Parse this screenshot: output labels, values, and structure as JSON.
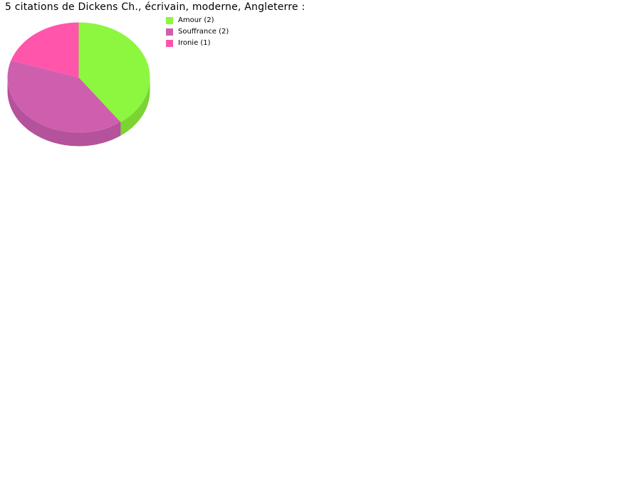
{
  "title": "5 citations de Dickens Ch., écrivain, moderne, Angleterre :",
  "chart_data": {
    "type": "pie",
    "style": "3d",
    "title": "5 citations de Dickens Ch., écrivain, moderne, Angleterre :",
    "total": 5,
    "unit": "citations",
    "categories": [
      "Amour",
      "Souffrance",
      "Ironie"
    ],
    "values": [
      2,
      2,
      1
    ],
    "slices": [
      {
        "label": "Amour",
        "value": 2,
        "legend_label": "Amour (2)",
        "color": "#8DF63E",
        "side_color": "#7AD431"
      },
      {
        "label": "Souffrance",
        "value": 2,
        "legend_label": "Souffrance (2)",
        "color": "#CE5FAF",
        "side_color": "#B4529C"
      },
      {
        "label": "Ironie",
        "value": 1,
        "legend_label": "Ironie (1)",
        "color": "#FF55AA",
        "side_color": "#DE4792"
      }
    ],
    "start_angle_deg": 0,
    "direction": "clockwise",
    "legend_position": "right",
    "background": "#FFFFFF",
    "text_color": "#000000"
  }
}
